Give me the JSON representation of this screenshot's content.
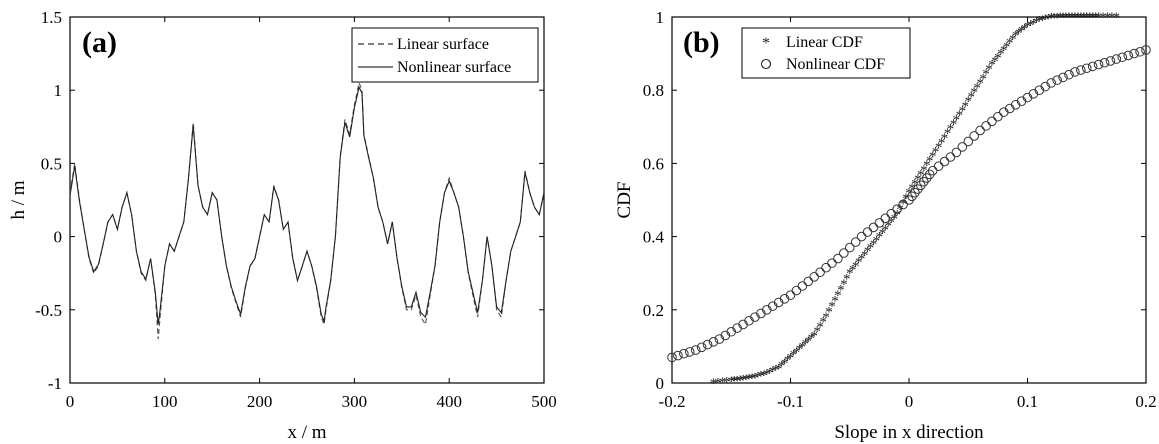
{
  "chart_data": [
    {
      "type": "line",
      "panel_label": "(a)",
      "xlabel": "x / m",
      "ylabel": "h / m",
      "xlim": [
        0,
        500
      ],
      "ylim": [
        -1,
        1.5
      ],
      "xticks": [
        "0",
        "100",
        "200",
        "300",
        "400",
        "500"
      ],
      "yticks": [
        "-1",
        "-0.5",
        "0",
        "0.5",
        "1",
        "1.5"
      ],
      "legend_position": "top-right",
      "grid": false,
      "series": [
        {
          "name": "Linear surface",
          "style": "dashed",
          "x": [
            0,
            5,
            10,
            15,
            20,
            25,
            30,
            35,
            40,
            45,
            50,
            55,
            60,
            65,
            70,
            75,
            80,
            85,
            90,
            93,
            95,
            100,
            105,
            110,
            115,
            120,
            125,
            130,
            135,
            140,
            145,
            150,
            155,
            160,
            165,
            170,
            175,
            180,
            185,
            190,
            195,
            200,
            205,
            210,
            215,
            220,
            225,
            230,
            235,
            240,
            245,
            250,
            255,
            260,
            265,
            268,
            270,
            275,
            280,
            285,
            290,
            295,
            300,
            305,
            308,
            310,
            315,
            320,
            325,
            330,
            335,
            340,
            345,
            350,
            355,
            360,
            365,
            370,
            375,
            380,
            385,
            390,
            395,
            400,
            405,
            410,
            415,
            420,
            425,
            430,
            435,
            440,
            445,
            450,
            455,
            460,
            465,
            470,
            475,
            480,
            485,
            490,
            495,
            500
          ],
          "values": [
            0.3,
            0.5,
            0.25,
            0.05,
            -0.15,
            -0.25,
            -0.2,
            -0.05,
            0.1,
            0.15,
            0.05,
            0.2,
            0.3,
            0.15,
            -0.1,
            -0.25,
            -0.3,
            -0.15,
            -0.4,
            -0.7,
            -0.55,
            -0.2,
            -0.05,
            -0.1,
            0.0,
            0.1,
            0.4,
            0.78,
            0.35,
            0.2,
            0.15,
            0.3,
            0.25,
            0.0,
            -0.2,
            -0.35,
            -0.45,
            -0.55,
            -0.35,
            -0.2,
            -0.15,
            0.0,
            0.15,
            0.1,
            0.35,
            0.25,
            0.05,
            0.1,
            -0.15,
            -0.3,
            -0.2,
            -0.1,
            -0.2,
            -0.35,
            -0.55,
            -0.6,
            -0.5,
            -0.3,
            0.0,
            0.55,
            0.8,
            0.7,
            0.9,
            1.05,
            1.0,
            0.7,
            0.55,
            0.4,
            0.2,
            0.1,
            -0.05,
            0.1,
            -0.15,
            -0.35,
            -0.5,
            -0.5,
            -0.4,
            -0.55,
            -0.6,
            -0.4,
            -0.2,
            0.1,
            0.3,
            0.4,
            0.3,
            0.2,
            0.0,
            -0.25,
            -0.4,
            -0.55,
            -0.3,
            0.0,
            -0.2,
            -0.5,
            -0.55,
            -0.3,
            -0.1,
            0.0,
            0.1,
            0.45,
            0.3,
            0.2,
            0.15,
            0.3
          ]
        },
        {
          "name": "Nonlinear surface",
          "style": "solid",
          "x": [
            0,
            5,
            10,
            15,
            20,
            25,
            30,
            35,
            40,
            45,
            50,
            55,
            60,
            65,
            70,
            75,
            80,
            85,
            90,
            93,
            95,
            100,
            105,
            110,
            115,
            120,
            125,
            130,
            135,
            140,
            145,
            150,
            155,
            160,
            165,
            170,
            175,
            180,
            185,
            190,
            195,
            200,
            205,
            210,
            215,
            220,
            225,
            230,
            235,
            240,
            245,
            250,
            255,
            260,
            265,
            268,
            270,
            275,
            280,
            285,
            290,
            295,
            300,
            305,
            308,
            310,
            315,
            320,
            325,
            330,
            335,
            340,
            345,
            350,
            355,
            360,
            365,
            370,
            375,
            380,
            385,
            390,
            395,
            400,
            405,
            410,
            415,
            420,
            425,
            430,
            435,
            440,
            445,
            450,
            455,
            460,
            465,
            470,
            475,
            480,
            485,
            490,
            495,
            500
          ],
          "values": [
            0.28,
            0.48,
            0.24,
            0.05,
            -0.14,
            -0.24,
            -0.19,
            -0.05,
            0.1,
            0.15,
            0.05,
            0.2,
            0.3,
            0.15,
            -0.1,
            -0.24,
            -0.29,
            -0.15,
            -0.38,
            -0.6,
            -0.5,
            -0.2,
            -0.05,
            -0.1,
            0.0,
            0.1,
            0.4,
            0.76,
            0.35,
            0.2,
            0.15,
            0.3,
            0.25,
            0.0,
            -0.2,
            -0.34,
            -0.44,
            -0.53,
            -0.34,
            -0.2,
            -0.15,
            0.0,
            0.15,
            0.1,
            0.34,
            0.25,
            0.05,
            0.1,
            -0.15,
            -0.3,
            -0.2,
            -0.1,
            -0.2,
            -0.34,
            -0.53,
            -0.58,
            -0.48,
            -0.3,
            0.0,
            0.54,
            0.78,
            0.68,
            0.88,
            1.02,
            0.98,
            0.69,
            0.54,
            0.4,
            0.2,
            0.1,
            -0.05,
            0.1,
            -0.15,
            -0.34,
            -0.48,
            -0.48,
            -0.38,
            -0.52,
            -0.55,
            -0.38,
            -0.2,
            0.1,
            0.3,
            0.38,
            0.3,
            0.2,
            0.0,
            -0.24,
            -0.38,
            -0.52,
            -0.3,
            0.0,
            -0.2,
            -0.48,
            -0.52,
            -0.3,
            -0.1,
            0.0,
            0.1,
            0.44,
            0.3,
            0.2,
            0.15,
            0.3
          ]
        }
      ]
    },
    {
      "type": "scatter",
      "panel_label": "(b)",
      "xlabel": "Slope in x direction",
      "ylabel": "CDF",
      "xlim": [
        -0.2,
        0.2
      ],
      "ylim": [
        0,
        1
      ],
      "xticks": [
        "-0.2",
        "-0.1",
        "0",
        "0.1",
        "0.2"
      ],
      "yticks": [
        "0",
        "0.2",
        "0.4",
        "0.6",
        "0.8",
        "1"
      ],
      "legend_position": "top-left",
      "grid": false,
      "series": [
        {
          "name": "Linear CDF",
          "marker": "asterisk",
          "x": [
            -0.165,
            -0.15,
            -0.14,
            -0.13,
            -0.12,
            -0.11,
            -0.1,
            -0.09,
            -0.08,
            -0.07,
            -0.06,
            -0.05,
            -0.04,
            -0.03,
            -0.02,
            -0.01,
            0.0,
            0.01,
            0.02,
            0.03,
            0.04,
            0.05,
            0.06,
            0.07,
            0.08,
            0.09,
            0.1,
            0.11,
            0.12,
            0.13,
            0.14,
            0.15,
            0.16,
            0.175
          ],
          "values": [
            0.0,
            0.005,
            0.01,
            0.015,
            0.025,
            0.04,
            0.07,
            0.1,
            0.13,
            0.18,
            0.24,
            0.3,
            0.34,
            0.38,
            0.42,
            0.46,
            0.52,
            0.57,
            0.62,
            0.67,
            0.72,
            0.77,
            0.82,
            0.87,
            0.91,
            0.95,
            0.975,
            0.99,
            0.998,
            1.0,
            1.0,
            1.0,
            1.0,
            1.0
          ]
        },
        {
          "name": "Nonlinear CDF",
          "marker": "circle",
          "x": [
            -0.2,
            -0.18,
            -0.16,
            -0.14,
            -0.12,
            -0.1,
            -0.08,
            -0.06,
            -0.04,
            -0.02,
            0.0,
            0.01,
            0.02,
            0.04,
            0.06,
            0.08,
            0.1,
            0.12,
            0.14,
            0.16,
            0.18,
            0.2
          ],
          "values": [
            0.07,
            0.09,
            0.12,
            0.16,
            0.2,
            0.24,
            0.29,
            0.34,
            0.4,
            0.45,
            0.5,
            0.54,
            0.58,
            0.63,
            0.69,
            0.74,
            0.78,
            0.82,
            0.85,
            0.87,
            0.89,
            0.91
          ]
        }
      ]
    }
  ]
}
